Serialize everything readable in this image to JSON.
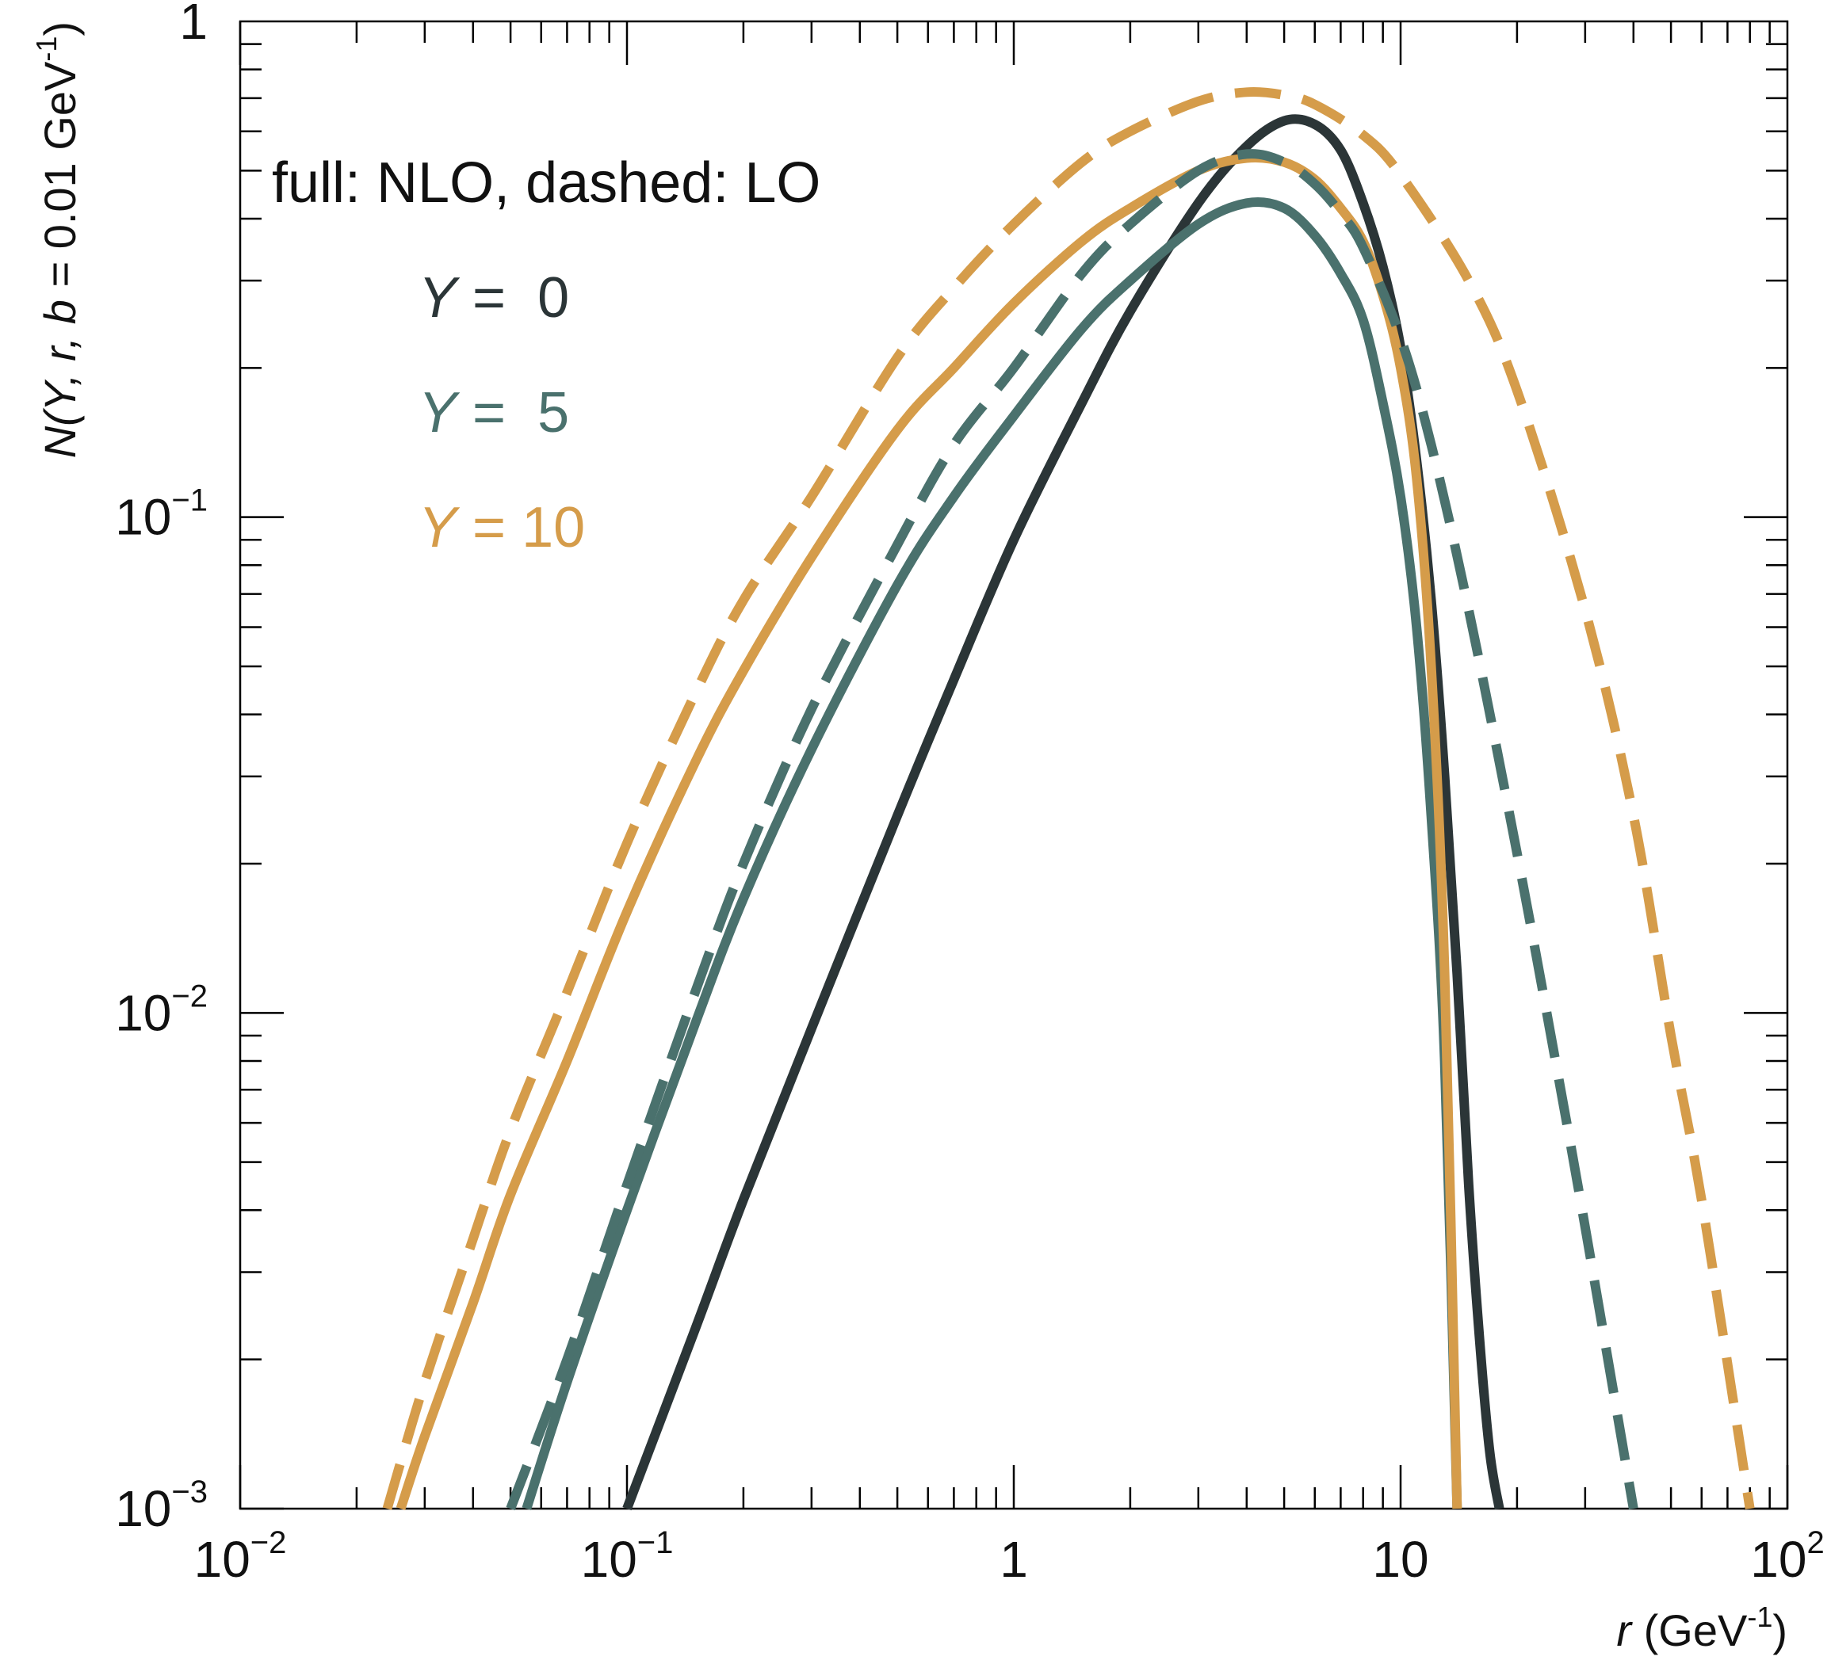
{
  "chart_data": {
    "type": "line",
    "xscale": "log",
    "yscale": "log",
    "xlim": [
      0.01,
      100
    ],
    "ylim": [
      0.001,
      1
    ],
    "grid": false,
    "xlabel": {
      "prefix": "r",
      "unit": " (GeV",
      "sup": "-1",
      "close": ")"
    },
    "ylabel": {
      "prefix": "N(Y",
      "mid": ", r, b",
      "rest": " = 0.01 GeV",
      "sup": "-1",
      "close": ")"
    },
    "x_ticks": [
      {
        "value": 0.01,
        "base": "10",
        "exp": "−2"
      },
      {
        "value": 0.1,
        "base": "10",
        "exp": "−1"
      },
      {
        "value": 1,
        "base": "1",
        "exp": ""
      },
      {
        "value": 10,
        "base": "10",
        "exp": ""
      },
      {
        "value": 100,
        "base": "10",
        "exp": "2"
      }
    ],
    "y_ticks": [
      {
        "value": 0.001,
        "base": "10",
        "exp": "−3"
      },
      {
        "value": 0.01,
        "base": "10",
        "exp": "−2"
      },
      {
        "value": 0.1,
        "base": "10",
        "exp": "−1"
      },
      {
        "value": 1,
        "base": "1",
        "exp": ""
      }
    ],
    "annotation": "full: NLO, dashed: LO",
    "legend": {
      "placement": "top-left",
      "entries": [
        {
          "label_var": "Y",
          "label_text": " =  0",
          "color": "#2b3537"
        },
        {
          "label_var": "Y",
          "label_text": " =  5",
          "color": "#4a716d"
        },
        {
          "label_var": "Y",
          "label_text": " = 10",
          "color": "#d59c4a"
        }
      ]
    },
    "series": [
      {
        "Y": 0,
        "order": "NLO",
        "style": "solid",
        "color": "#2b3537",
        "x": [
          0.1,
          0.15,
          0.2,
          0.3,
          0.5,
          0.7,
          1,
          1.5,
          2,
          3,
          4,
          5,
          6,
          7,
          8,
          9,
          10,
          11,
          12,
          13,
          14,
          15,
          16,
          17,
          18
        ],
        "y": [
          0.001,
          0.0023,
          0.0042,
          0.0093,
          0.025,
          0.047,
          0.09,
          0.17,
          0.26,
          0.43,
          0.56,
          0.63,
          0.62,
          0.55,
          0.43,
          0.32,
          0.22,
          0.13,
          0.068,
          0.03,
          0.012,
          0.0045,
          0.0022,
          0.0013,
          0.001
        ]
      },
      {
        "Y": 5,
        "order": "NLO",
        "style": "solid",
        "color": "#4a716d",
        "x": [
          0.055,
          0.07,
          0.1,
          0.15,
          0.2,
          0.3,
          0.5,
          0.7,
          1,
          1.5,
          2,
          3,
          4,
          5,
          6,
          7,
          8,
          9,
          10,
          11,
          12,
          13,
          14
        ],
        "y": [
          0.001,
          0.0018,
          0.004,
          0.0095,
          0.017,
          0.034,
          0.073,
          0.11,
          0.16,
          0.24,
          0.3,
          0.39,
          0.43,
          0.42,
          0.37,
          0.31,
          0.25,
          0.17,
          0.11,
          0.06,
          0.025,
          0.008,
          0.001
        ]
      },
      {
        "Y": 10,
        "order": "NLO",
        "style": "solid",
        "color": "#d59c4a",
        "x": [
          0.026,
          0.03,
          0.04,
          0.05,
          0.07,
          0.1,
          0.15,
          0.2,
          0.3,
          0.5,
          0.7,
          1,
          1.5,
          2,
          3,
          4,
          5,
          6,
          7,
          8,
          9,
          10,
          11,
          12,
          13,
          14
        ],
        "y": [
          0.001,
          0.0014,
          0.0026,
          0.0043,
          0.008,
          0.016,
          0.032,
          0.049,
          0.083,
          0.15,
          0.2,
          0.27,
          0.36,
          0.42,
          0.5,
          0.53,
          0.52,
          0.48,
          0.42,
          0.36,
          0.28,
          0.2,
          0.12,
          0.05,
          0.012,
          0.001
        ]
      },
      {
        "Y": 5,
        "order": "LO",
        "style": "dashed",
        "color": "#4a716d",
        "x": [
          0.05,
          0.07,
          0.1,
          0.15,
          0.2,
          0.3,
          0.5,
          0.7,
          1,
          1.5,
          2,
          3,
          4,
          5,
          6,
          7,
          8,
          10,
          12,
          15,
          20,
          25,
          30,
          40
        ],
        "y": [
          0.001,
          0.002,
          0.0045,
          0.011,
          0.02,
          0.041,
          0.088,
          0.14,
          0.2,
          0.31,
          0.39,
          0.5,
          0.54,
          0.52,
          0.47,
          0.41,
          0.35,
          0.23,
          0.14,
          0.065,
          0.021,
          0.0082,
          0.0037,
          0.001
        ]
      },
      {
        "Y": 10,
        "order": "LO",
        "style": "dashed",
        "color": "#d59c4a",
        "x": [
          0.024,
          0.03,
          0.04,
          0.05,
          0.07,
          0.1,
          0.15,
          0.2,
          0.3,
          0.5,
          0.7,
          1,
          1.5,
          2,
          3,
          4,
          5,
          6,
          8,
          10,
          15,
          20,
          30,
          40,
          50,
          60,
          80
        ],
        "y": [
          0.001,
          0.0018,
          0.0035,
          0.0058,
          0.011,
          0.022,
          0.044,
          0.068,
          0.11,
          0.21,
          0.29,
          0.39,
          0.52,
          0.6,
          0.69,
          0.72,
          0.71,
          0.68,
          0.59,
          0.49,
          0.3,
          0.18,
          0.065,
          0.025,
          0.009,
          0.0042,
          0.001
        ]
      }
    ]
  }
}
